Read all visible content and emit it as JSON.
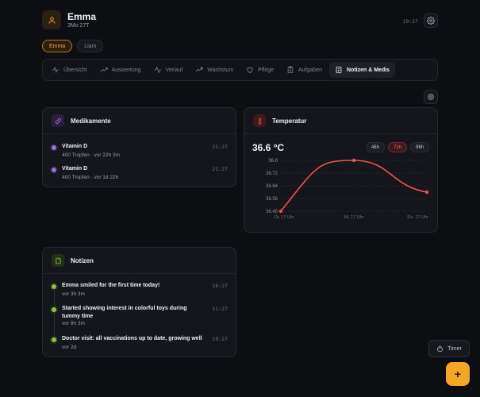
{
  "header": {
    "name": "Emma",
    "age": "3Mo 27T",
    "time": "19:27"
  },
  "kids": [
    {
      "label": "Emma",
      "active": true
    },
    {
      "label": "Liam",
      "active": false
    }
  ],
  "tabs": [
    {
      "label": "Übersicht",
      "icon": "pulse-icon"
    },
    {
      "label": "Auswertung",
      "icon": "trend-icon"
    },
    {
      "label": "Verlauf",
      "icon": "activity-icon"
    },
    {
      "label": "Wachstum",
      "icon": "growth-icon"
    },
    {
      "label": "Pflege",
      "icon": "heart-icon"
    },
    {
      "label": "Aufgaben",
      "icon": "clipboard-icon"
    },
    {
      "label": "Notizen & Medis",
      "icon": "notes-icon",
      "active": true
    }
  ],
  "medications": {
    "title": "Medikamente",
    "items": [
      {
        "name": "Vitamin D",
        "detail": "400 Tropfen · vor 22h 3m",
        "time": "21:27"
      },
      {
        "name": "Vitamin D",
        "detail": "400 Tropfen · vor 1d 22h",
        "time": "21:27"
      }
    ]
  },
  "temperature": {
    "title": "Temperatur",
    "current": "36.6 °C",
    "ranges": [
      {
        "label": "48h",
        "active": false
      },
      {
        "label": "72h",
        "active": true
      },
      {
        "label": "96h",
        "active": false
      }
    ]
  },
  "notes": {
    "title": "Notizen",
    "items": [
      {
        "text": "Emma smiled for the first time today!",
        "ago": "vor 3h 3m",
        "time": "16:27"
      },
      {
        "text": "Started showing interest in colorful toys during tummy time",
        "ago": "vor 8h 3m",
        "time": "11:27"
      },
      {
        "text": "Doctor visit: all vaccinations up to date, growing well",
        "ago": "vor 2d",
        "time": "19:27"
      }
    ]
  },
  "timer_label": "Timer",
  "fab_label": "+",
  "colors": {
    "accent": "#f5a623",
    "temp_line": "#ef5350",
    "med_dot": "#a06bdc",
    "note_dot": "#8bc34a"
  },
  "chart_data": {
    "type": "line",
    "x": [
      "Di, 17 Uhr",
      "Mi, 17 Uhr",
      "Do, 17 Uhr"
    ],
    "series": [
      {
        "values": [
          36.48,
          36.8,
          36.6
        ]
      }
    ],
    "yticks": [
      "36.8",
      "36.72",
      "36.64",
      "36.56",
      "36.48"
    ],
    "ylim": [
      36.48,
      36.8
    ],
    "grid": true
  }
}
